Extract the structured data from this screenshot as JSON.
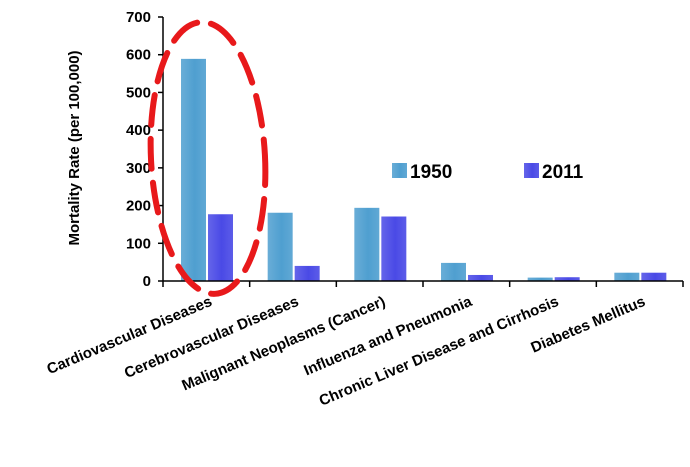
{
  "chart_data": {
    "type": "bar",
    "title": "",
    "xlabel": "",
    "ylabel": "Mortality Rate (per 100,000)",
    "ylim": [
      0,
      700
    ],
    "yticks": [
      0,
      100,
      200,
      300,
      400,
      500,
      600,
      700
    ],
    "grid": false,
    "legend_position": "right",
    "categories": [
      "Cardiovascular Diseases",
      "Cerebrovascular Diseases",
      "Malignant Neoplasms (Cancer)",
      "Influenza and Pneumonia",
      "Chronic Liver Disease and Cirrhosis",
      "Diabetes Mellitus"
    ],
    "series": [
      {
        "name": "1950",
        "values": [
          589,
          181,
          194,
          48,
          9,
          22
        ],
        "color": "#4f9fd0"
      },
      {
        "name": "2011",
        "values": [
          177,
          40,
          171,
          16,
          10,
          22
        ],
        "color": "#4a4ae6"
      }
    ],
    "annotation": {
      "shape": "dashed-ellipse",
      "color": "#e8191b",
      "target_category": "Cardiovascular Diseases"
    }
  }
}
